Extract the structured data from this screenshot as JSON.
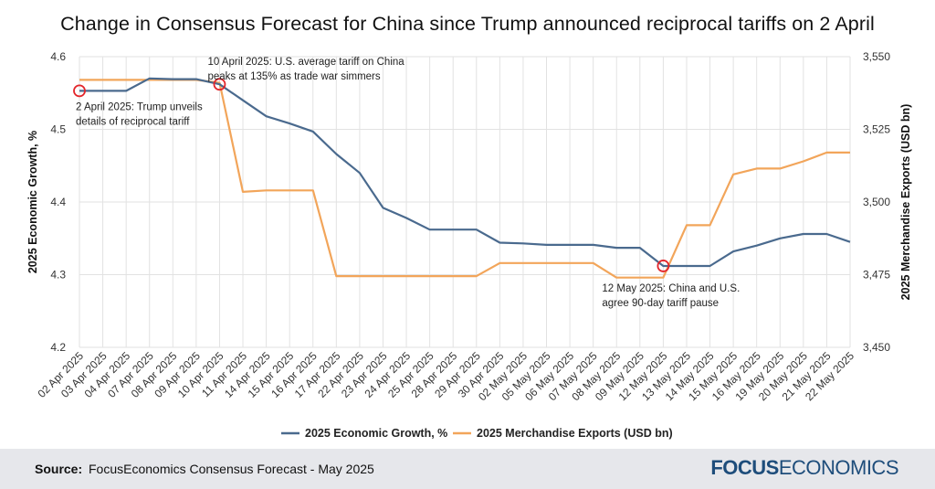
{
  "title": "Change in Consensus Forecast for China since Trump announced reciprocal tariffs on 2 April",
  "footer": {
    "source_label": "Source:",
    "source_text": "FocusEconomics Consensus Forecast - May 2025",
    "logo_bold": "FOCUS",
    "logo_regular": "ECONOMICS"
  },
  "colors": {
    "growth": "#4a6a8e",
    "exports": "#f2a55a",
    "marker": "#e3262b",
    "grid": "#e2e2e2",
    "axis_text": "#333333"
  },
  "chart_data": {
    "type": "line",
    "title": "Change in Consensus Forecast for China since Trump announced reciprocal tariffs on 2 April",
    "x": [
      "02 Apr 2025",
      "03 Apr 2025",
      "04 Apr 2025",
      "07 Apr 2025",
      "08 Apr 2025",
      "09 Apr 2025",
      "10 Apr 2025",
      "11 Apr 2025",
      "14 Apr 2025",
      "15 Apr 2025",
      "16 Apr 2025",
      "17 Apr 2025",
      "22 Apr 2025",
      "23 Apr 2025",
      "24 Apr 2025",
      "25 Apr 2025",
      "28 Apr 2025",
      "29 Apr 2025",
      "30 Apr 2025",
      "02 May 2025",
      "05 May 2025",
      "06 May 2025",
      "07 May 2025",
      "08 May 2025",
      "09 May 2025",
      "12 May 2025",
      "13 May 2025",
      "14 May 2025",
      "15 May 2025",
      "16 May 2025",
      "19 May 2025",
      "20 May 2025",
      "21 May 2025",
      "22 May 2025"
    ],
    "ylabel_left": "2025 Economic Growth, %",
    "ylabel_right": "2025 Merchandise Exports (USD bn)",
    "ylim_left": [
      4.2,
      4.6
    ],
    "yticks_left": [
      "4.2",
      "4.3",
      "4.4",
      "4.5",
      "4.6"
    ],
    "ylim_right": [
      3450,
      3550
    ],
    "yticks_right": [
      "3,450",
      "3,475",
      "3,500",
      "3,525",
      "3,550"
    ],
    "series": [
      {
        "name": "2025 Economic Growth, %",
        "axis": "left",
        "values": [
          4.553,
          4.553,
          4.553,
          4.57,
          4.569,
          4.569,
          4.562,
          4.54,
          4.518,
          4.508,
          4.497,
          4.466,
          4.44,
          4.392,
          4.378,
          4.362,
          4.362,
          4.362,
          4.344,
          4.343,
          4.341,
          4.341,
          4.341,
          4.337,
          4.337,
          4.312,
          4.312,
          4.312,
          4.332,
          4.34,
          4.35,
          4.356,
          4.356,
          4.345
        ]
      },
      {
        "name": "2025 Merchandise Exports (USD bn)",
        "axis": "right",
        "values": [
          3542,
          3542,
          3542,
          3542,
          3542,
          3542,
          3541,
          3503.5,
          3504,
          3504,
          3504,
          3474.5,
          3474.5,
          3474.5,
          3474.5,
          3474.5,
          3474.5,
          3474.5,
          3479,
          3479,
          3479,
          3479,
          3479,
          3474,
          3474,
          3474,
          3492,
          3492,
          3509.5,
          3511.5,
          3511.5,
          3514,
          3517,
          3517
        ]
      }
    ],
    "annotations": [
      {
        "index": 0,
        "series": 0,
        "lines": [
          "2 April 2025: Trump unveils",
          "details of reciprocal tariff"
        ],
        "position": "below"
      },
      {
        "index": 6,
        "series": 0,
        "lines": [
          "10 April 2025: U.S. average tariff on China",
          "peaks at 135% as trade war simmers"
        ],
        "position": "above"
      },
      {
        "index": 25,
        "series": 0,
        "lines": [
          "12 May 2025: China and U.S.",
          "agree 90-day tariff pause"
        ],
        "position": "below"
      }
    ],
    "legend_position": "bottom-center"
  }
}
